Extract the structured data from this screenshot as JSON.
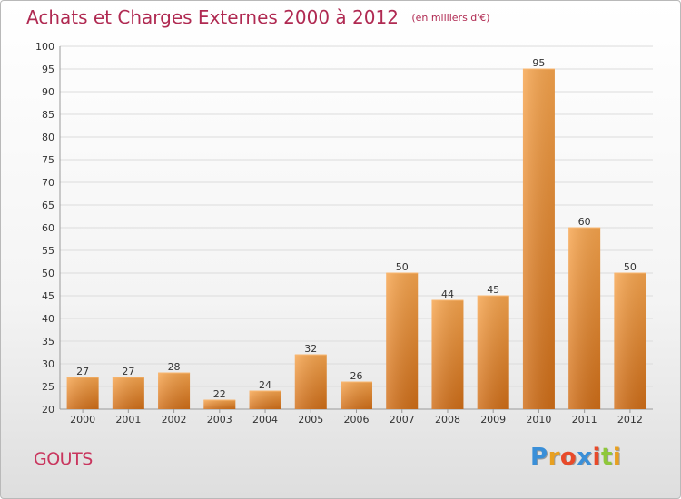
{
  "header": {
    "title": "Achats et Charges Externes 2000 à 2012",
    "subtitle": "(en milliers d'€)"
  },
  "footer": {
    "commune": "GOUTS",
    "brand": "Proxiti",
    "brand_colors": [
      "#3a8fd8",
      "#e8a020",
      "#e84a2a",
      "#3a8fd8",
      "#e84a2a",
      "#8fc83a",
      "#e8a020"
    ]
  },
  "chart_data": {
    "type": "bar",
    "title": "Achats et Charges Externes 2000 à 2012",
    "subtitle": "(en milliers d'€)",
    "categories": [
      "2000",
      "2001",
      "2002",
      "2003",
      "2004",
      "2005",
      "2006",
      "2007",
      "2008",
      "2009",
      "2010",
      "2011",
      "2012"
    ],
    "values": [
      27,
      27,
      28,
      22,
      24,
      32,
      26,
      50,
      44,
      45,
      95,
      60,
      50
    ],
    "ylim": [
      20,
      100
    ],
    "yticks": [
      20,
      25,
      30,
      35,
      40,
      45,
      50,
      55,
      60,
      65,
      70,
      75,
      80,
      85,
      90,
      95,
      100
    ],
    "grid": true,
    "bar_color": "#f0943a",
    "bar_color_dark": "#d8741c",
    "grid_color": "#dcdcdc",
    "text_color": "#333333"
  }
}
